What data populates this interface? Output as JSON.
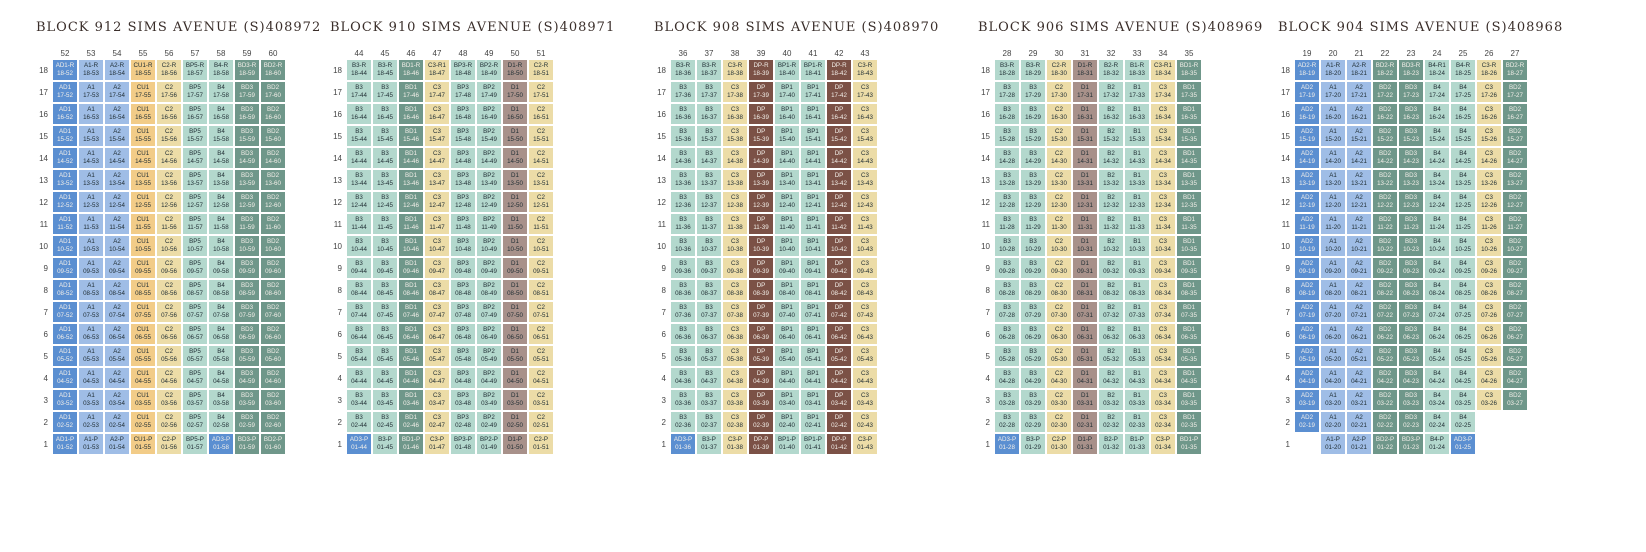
{
  "colors": {
    "AD": "#5b8fd1",
    "A": "#9fbde6",
    "CU": "#f2cc88",
    "C": "#ecdca7",
    "BP": "#b3d8cd",
    "B": "#b3d8cd",
    "BD": "#6f978a",
    "D": "#a8918a",
    "DP": "#7b5146",
    "empty": "#ffffff"
  },
  "blocks": [
    {
      "title": "BLOCK 912 SIMS AVENUE (S)408972",
      "columns": [
        "52",
        "53",
        "54",
        "55",
        "56",
        "57",
        "58",
        "59",
        "60"
      ],
      "typical": [
        "AD1",
        "A1",
        "A2",
        "CU1",
        "C2",
        "BP5",
        "B4",
        "BD3",
        "BD2"
      ],
      "top": [
        "AD1-R",
        "A1-R",
        "A2-R",
        "CU1-R",
        "C2-R",
        "BP5-R",
        "B4-R",
        "BD3-R",
        "BD2-R"
      ],
      "bottom": [
        "AD1-P",
        "A1-P",
        "A2-P",
        "CU1-P",
        "C2-P",
        "BP5-P",
        "AD3-P",
        "BD3-P",
        "BD2-P"
      ],
      "bottom_colors": [
        "AD",
        "A",
        "A",
        "CU",
        "C",
        "BP",
        "AD",
        "BD",
        "BD"
      ],
      "top_colors": [
        "AD",
        "A",
        "A",
        "CU",
        "C",
        "BP",
        "B",
        "BD",
        "BD"
      ]
    },
    {
      "title": "BLOCK 910 SIMS AVENUE (S)408971",
      "columns": [
        "44",
        "45",
        "46",
        "47",
        "48",
        "49",
        "50",
        "51"
      ],
      "typical": [
        "B3",
        "B3",
        "BD1",
        "C3",
        "BP3",
        "BP2",
        "D1",
        "C2"
      ],
      "top": [
        "B3-R",
        "B3-R",
        "BD1-R",
        "C3-R1",
        "BP3-R",
        "BP2-R",
        "D1-R",
        "C2-R"
      ],
      "bottom": [
        "AD3-P",
        "B3-P",
        "BD1-P",
        "C3-P",
        "BP3-P",
        "BP2-P",
        "D1-P",
        "C2-P"
      ],
      "bottom_colors": [
        "AD",
        "B",
        "BD",
        "C",
        "BP",
        "BP",
        "D",
        "C"
      ],
      "top_colors": [
        "B",
        "B",
        "BD",
        "C",
        "BP",
        "BP",
        "D",
        "C"
      ]
    },
    {
      "title": "BLOCK 908 SIMS AVENUE (S)408970",
      "columns": [
        "36",
        "37",
        "38",
        "39",
        "40",
        "41",
        "42",
        "43"
      ],
      "typical": [
        "B3",
        "B3",
        "C3",
        "DP",
        "BP1",
        "BP1",
        "DP",
        "C3"
      ],
      "top": [
        "B3-R",
        "B3-R",
        "C3-R",
        "DP-R",
        "BP1-R",
        "BP1-R",
        "DP-R",
        "C3-R"
      ],
      "bottom": [
        "AD3-P",
        "B3-P",
        "C3-P",
        "DP-P",
        "BP1-P",
        "BP1-P",
        "DP-P",
        "C3-P"
      ],
      "bottom_colors": [
        "AD",
        "B",
        "C",
        "DP",
        "BP",
        "BP",
        "DP",
        "C"
      ],
      "top_colors": [
        "B",
        "B",
        "C",
        "DP",
        "BP",
        "BP",
        "DP",
        "C"
      ]
    },
    {
      "title": "BLOCK 906 SIMS AVENUE (S)408969",
      "columns": [
        "28",
        "29",
        "30",
        "31",
        "32",
        "33",
        "34",
        "35"
      ],
      "typical": [
        "B3",
        "B3",
        "C2",
        "D1",
        "B2",
        "B1",
        "C3",
        "BD1"
      ],
      "top": [
        "B3-R",
        "B3-R",
        "C2-R",
        "D1-R",
        "B2-R",
        "B1-R",
        "C3-R1",
        "BD1-R"
      ],
      "bottom": [
        "AD3-P",
        "B3-P",
        "C2-P",
        "D1-P",
        "B2-P",
        "B1-P",
        "C3-P",
        "BD1-P"
      ],
      "bottom_colors": [
        "AD",
        "B",
        "C",
        "D",
        "B",
        "B",
        "C",
        "BD"
      ],
      "top_colors": [
        "B",
        "B",
        "C",
        "D",
        "B",
        "B",
        "C",
        "BD"
      ]
    },
    {
      "title": "BLOCK 904 SIMS AVENUE (S)408968",
      "columns": [
        "19",
        "20",
        "21",
        "22",
        "23",
        "24",
        "25",
        "26",
        "27"
      ],
      "typical": [
        "AD2",
        "A1",
        "A2",
        "BD2",
        "BD3",
        "B4",
        "B4",
        "C3",
        "BD2"
      ],
      "top": [
        "AD2-R",
        "A1-R",
        "A2-R",
        "BD2-R",
        "BD3-R",
        "B4-R1",
        "B4-R",
        "C3-R",
        "BD2-R"
      ],
      "bottom": [
        "",
        "A1-P",
        "A2-P",
        "BD2-P",
        "BD3-P",
        "B4-P",
        "AD3-P",
        "",
        ""
      ],
      "bottom_colors": [
        "empty",
        "A",
        "A",
        "BD",
        "BD",
        "B",
        "AD",
        "empty",
        "empty"
      ],
      "top_colors": [
        "AD",
        "A",
        "A",
        "BD",
        "BD",
        "B",
        "B",
        "C",
        "BD"
      ],
      "floor2_skip": [
        7,
        8
      ]
    }
  ],
  "floors": [
    "18",
    "17",
    "16",
    "15",
    "14",
    "13",
    "12",
    "11",
    "10",
    "9",
    "8",
    "7",
    "6",
    "5",
    "4",
    "3",
    "2",
    "1"
  ]
}
